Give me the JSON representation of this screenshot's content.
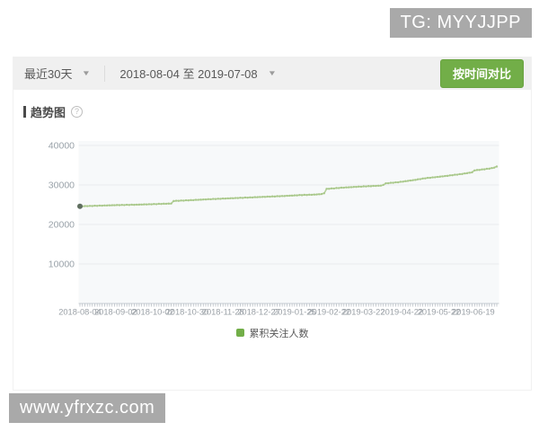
{
  "watermarks": {
    "top_right": "TG: MYYJJPP",
    "bottom_left": "www.yfrxzc.com"
  },
  "toolbar": {
    "range_dropdown_label": "最近30天",
    "date_dropdown_label": "2018-08-04 至 2019-07-08",
    "compare_button_label": "按时间对比",
    "button_color": "#72ae48"
  },
  "section": {
    "title": "趋势图",
    "help_glyph": "?"
  },
  "legend": {
    "label": "累积关注人数",
    "color": "#72ae48"
  },
  "chart_data": {
    "type": "line",
    "title": "趋势图",
    "series_name": "累积关注人数",
    "x_start": "2018-08-04",
    "x_end": "2019-07-08",
    "total_days": 338,
    "x_tick_labels": [
      "2018-08-04",
      "2018-09-02",
      "2018-10-02",
      "2018-10-30",
      "2018-11-28",
      "2018-12-27",
      "2019-01-25",
      "2019-02-22",
      "2019-03-22",
      "2019-04-22",
      "2019-05-22",
      "2019-06-19"
    ],
    "x_tick_days": [
      0,
      29,
      59,
      87,
      116,
      145,
      174,
      202,
      230,
      261,
      291,
      319
    ],
    "y_ticks": [
      10000,
      20000,
      30000,
      40000
    ],
    "ylim": [
      0,
      40000
    ],
    "grid": true,
    "legend_position": "bottom",
    "line_color": "#b6d09c",
    "dot_color": "#a6c687",
    "first_dot_color": "#5f6e5f",
    "plot_bg_color": "#f7f9fa",
    "keypoints": [
      {
        "d": 0,
        "v": 24600
      },
      {
        "d": 15,
        "v": 24750
      },
      {
        "d": 30,
        "v": 24900
      },
      {
        "d": 45,
        "v": 25000
      },
      {
        "d": 60,
        "v": 25150
      },
      {
        "d": 74,
        "v": 25300
      },
      {
        "d": 76,
        "v": 25950
      },
      {
        "d": 90,
        "v": 26150
      },
      {
        "d": 105,
        "v": 26400
      },
      {
        "d": 120,
        "v": 26600
      },
      {
        "d": 135,
        "v": 26800
      },
      {
        "d": 150,
        "v": 27000
      },
      {
        "d": 165,
        "v": 27200
      },
      {
        "d": 180,
        "v": 27450
      },
      {
        "d": 190,
        "v": 27550
      },
      {
        "d": 196,
        "v": 27700
      },
      {
        "d": 198,
        "v": 27900
      },
      {
        "d": 200,
        "v": 29000
      },
      {
        "d": 210,
        "v": 29250
      },
      {
        "d": 225,
        "v": 29550
      },
      {
        "d": 245,
        "v": 29850
      },
      {
        "d": 248,
        "v": 30400
      },
      {
        "d": 258,
        "v": 30700
      },
      {
        "d": 270,
        "v": 31200
      },
      {
        "d": 280,
        "v": 31700
      },
      {
        "d": 292,
        "v": 32100
      },
      {
        "d": 300,
        "v": 32400
      },
      {
        "d": 310,
        "v": 32800
      },
      {
        "d": 318,
        "v": 33200
      },
      {
        "d": 320,
        "v": 33700
      },
      {
        "d": 326,
        "v": 33900
      },
      {
        "d": 332,
        "v": 34150
      },
      {
        "d": 335,
        "v": 34300
      },
      {
        "d": 338,
        "v": 34650
      }
    ]
  }
}
